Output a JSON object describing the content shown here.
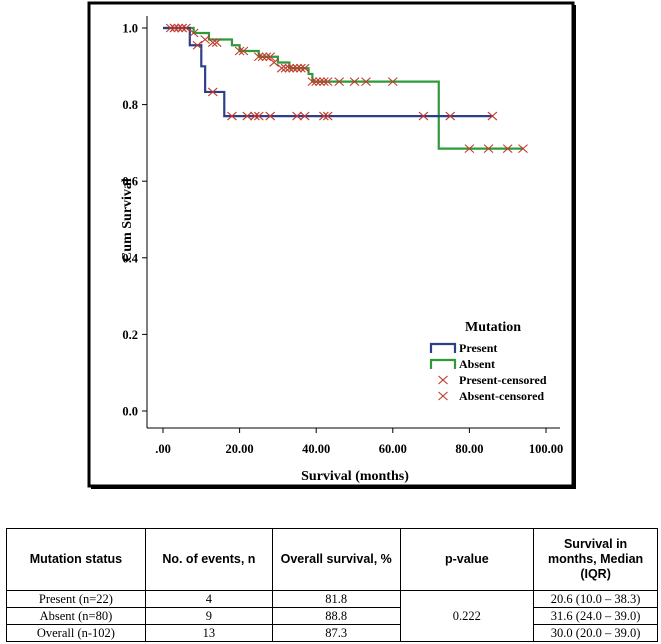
{
  "chart_data": {
    "type": "line",
    "title": "",
    "xlabel": "Survival (months)",
    "ylabel": "Cum Survival",
    "xlim": [
      0,
      100
    ],
    "ylim": [
      0,
      1.0
    ],
    "x_ticks": [
      ".00",
      "20.00",
      "40.00",
      "60.00",
      "80.00",
      "100.00"
    ],
    "y_ticks": [
      "0.0",
      "0.2",
      "0.4",
      "0.6",
      "0.8",
      "1.0"
    ],
    "legend_title": "Mutation",
    "legend_position": "bottom-right",
    "series": [
      {
        "name": "Present",
        "color": "#2b3f8c",
        "steps": [
          [
            0,
            1.0
          ],
          [
            7,
            0.955
          ],
          [
            10,
            0.9
          ],
          [
            11,
            0.833
          ],
          [
            16,
            0.77
          ],
          [
            86,
            0.77
          ]
        ],
        "censored": [
          [
            3,
            1.0
          ],
          [
            5,
            1.0
          ],
          [
            9,
            0.955
          ],
          [
            13,
            0.833
          ],
          [
            18,
            0.77
          ],
          [
            22,
            0.77
          ],
          [
            24,
            0.77
          ],
          [
            25,
            0.77
          ],
          [
            28,
            0.77
          ],
          [
            35,
            0.77
          ],
          [
            37,
            0.77
          ],
          [
            42,
            0.77
          ],
          [
            43,
            0.77
          ],
          [
            68,
            0.77
          ],
          [
            75,
            0.77
          ],
          [
            86,
            0.77
          ]
        ]
      },
      {
        "name": "Absent",
        "color": "#2e9a3a",
        "steps": [
          [
            0,
            1.0
          ],
          [
            8,
            0.987
          ],
          [
            12,
            0.97
          ],
          [
            18,
            0.955
          ],
          [
            20,
            0.94
          ],
          [
            25,
            0.925
          ],
          [
            30,
            0.91
          ],
          [
            33,
            0.895
          ],
          [
            38,
            0.88
          ],
          [
            39,
            0.86
          ],
          [
            72,
            0.86
          ],
          [
            72,
            0.685
          ],
          [
            94,
            0.685
          ]
        ],
        "censored": [
          [
            2,
            1.0
          ],
          [
            3,
            1.0
          ],
          [
            4,
            1.0
          ],
          [
            5,
            1.0
          ],
          [
            6,
            1.0
          ],
          [
            8,
            0.987
          ],
          [
            11,
            0.97
          ],
          [
            13,
            0.962
          ],
          [
            14,
            0.962
          ],
          [
            20,
            0.94
          ],
          [
            21,
            0.94
          ],
          [
            25,
            0.925
          ],
          [
            26,
            0.925
          ],
          [
            27,
            0.925
          ],
          [
            28,
            0.925
          ],
          [
            29,
            0.91
          ],
          [
            31,
            0.895
          ],
          [
            32,
            0.895
          ],
          [
            33,
            0.895
          ],
          [
            34,
            0.895
          ],
          [
            35,
            0.895
          ],
          [
            36,
            0.895
          ],
          [
            37,
            0.895
          ],
          [
            39,
            0.86
          ],
          [
            40,
            0.86
          ],
          [
            41,
            0.86
          ],
          [
            42,
            0.86
          ],
          [
            43,
            0.86
          ],
          [
            46,
            0.86
          ],
          [
            50,
            0.86
          ],
          [
            53,
            0.86
          ],
          [
            60,
            0.86
          ],
          [
            80,
            0.685
          ],
          [
            85,
            0.685
          ],
          [
            90,
            0.685
          ],
          [
            94,
            0.685
          ]
        ]
      }
    ],
    "legend_entries": [
      "Present",
      "Absent",
      "Present-censored",
      "Absent-censored"
    ],
    "censor_color": "#c0392b"
  },
  "table": {
    "headers": [
      "Mutation status",
      "No. of events, n",
      "Overall survival, %",
      "p-value",
      "Survival in months, Median (IQR)"
    ],
    "rows": [
      {
        "status": "Present (n=22)",
        "events": "4",
        "overall": "81.8",
        "median": "20.6 (10.0 – 38.3)"
      },
      {
        "status": "Absent (n=80)",
        "events": "9",
        "overall": "88.8",
        "median": "31.6 (24.0 – 39.0)"
      },
      {
        "status": "Overall (n-102)",
        "events": "13",
        "overall": "87.3",
        "median": "30.0 (20.0 – 39.0)"
      }
    ],
    "p_value": "0.222"
  }
}
